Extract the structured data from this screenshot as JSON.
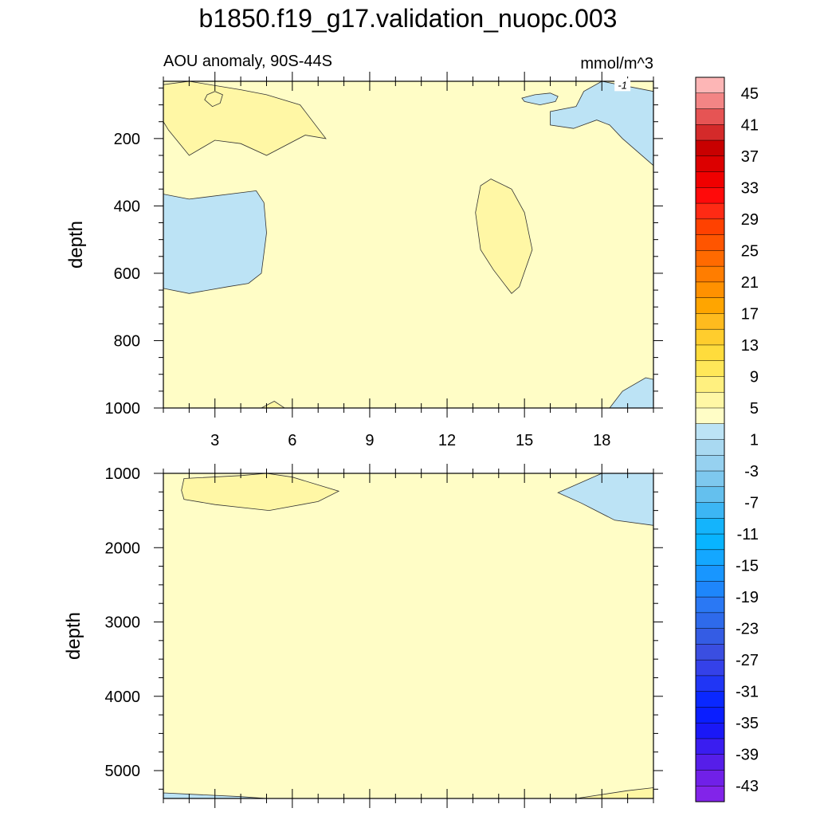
{
  "title": "b1850.f19_g17.validation_nuopc.003",
  "subtitle_left": "AOU anomaly, 90S-44S",
  "subtitle_right": "mmol/m^3",
  "contour_label": "-1",
  "colors": {
    "background_field": "#fffdc6",
    "positive_1_5": "#fff7a5",
    "negative_1_3": "#bce3f5"
  },
  "chart_data": [
    {
      "type": "contour",
      "panel": "upper",
      "ylabel": "depth",
      "xlim": [
        1,
        20
      ],
      "ylim": [
        1000,
        30
      ],
      "y_reversed": true,
      "xticks": [
        3,
        6,
        9,
        12,
        15,
        18
      ],
      "yticks": [
        200,
        400,
        600,
        800,
        1000
      ],
      "regions": [
        {
          "level": "1 to 5",
          "color": "#fff7a5",
          "points": [
            [
              1,
              40
            ],
            [
              2,
              30
            ],
            [
              4,
              55
            ],
            [
              5,
              70
            ],
            [
              6.3,
              100
            ],
            [
              7.3,
              200
            ],
            [
              6.5,
              190
            ],
            [
              5,
              250
            ],
            [
              4,
              215
            ],
            [
              3,
              205
            ],
            [
              2,
              250
            ],
            [
              1.2,
              175
            ],
            [
              1,
              150
            ]
          ]
        },
        {
          "level": "1 to 5",
          "color": "#fff7a5",
          "points": [
            [
              2.7,
              70
            ],
            [
              3,
              60
            ],
            [
              3.3,
              70
            ],
            [
              3.2,
              95
            ],
            [
              2.9,
              105
            ],
            [
              2.6,
              85
            ]
          ]
        },
        {
          "level": "1 to 5",
          "color": "#fff7a5",
          "points": [
            [
              13.7,
              320
            ],
            [
              14.5,
              350
            ],
            [
              15,
              420
            ],
            [
              15.3,
              530
            ],
            [
              14.8,
              640
            ],
            [
              14.5,
              660
            ],
            [
              13.8,
              590
            ],
            [
              13.3,
              530
            ],
            [
              13.1,
              420
            ],
            [
              13.3,
              340
            ]
          ]
        },
        {
          "level": "-3 to -1",
          "color": "#bce3f5",
          "points": [
            [
              1,
              365
            ],
            [
              2,
              380
            ],
            [
              4.6,
              355
            ],
            [
              4.9,
              390
            ],
            [
              5,
              480
            ],
            [
              4.8,
              600
            ],
            [
              4.3,
              630
            ],
            [
              3.5,
              640
            ],
            [
              2,
              660
            ],
            [
              1,
              645
            ]
          ]
        },
        {
          "level": "-3 to -1",
          "color": "#bce3f5",
          "points": [
            [
              15.4,
              70
            ],
            [
              16,
              65
            ],
            [
              16.3,
              75
            ],
            [
              16.2,
              90
            ],
            [
              15.6,
              100
            ],
            [
              15,
              90
            ],
            [
              14.9,
              80
            ]
          ]
        },
        {
          "level": "-3 to -1",
          "color": "#bce3f5",
          "points": [
            [
              18,
              30
            ],
            [
              20,
              60
            ],
            [
              20,
              280
            ],
            [
              18.8,
              200
            ],
            [
              18.3,
              160
            ],
            [
              17.8,
              145
            ],
            [
              16.9,
              170
            ],
            [
              16,
              160
            ],
            [
              16,
              120
            ],
            [
              17,
              105
            ],
            [
              17.3,
              60
            ]
          ]
        },
        {
          "level": "-3 to -1",
          "color": "#bce3f5",
          "points": [
            [
              19.7,
              910
            ],
            [
              20,
              915
            ],
            [
              20,
              1000
            ],
            [
              18.3,
              1000
            ],
            [
              18.8,
              950
            ]
          ]
        },
        {
          "level": "1 to 5",
          "color": "#fff7a5",
          "points": [
            [
              4.8,
              1000
            ],
            [
              5.3,
              980
            ],
            [
              5.7,
              1000
            ]
          ]
        }
      ]
    },
    {
      "type": "contour",
      "panel": "lower",
      "ylabel": "depth",
      "xlim": [
        1,
        20
      ],
      "ylim": [
        5375,
        1000
      ],
      "y_reversed": true,
      "xticks": [
        3,
        6,
        9,
        12,
        15,
        18
      ],
      "yticks": [
        1000,
        2000,
        3000,
        4000,
        5000
      ],
      "regions": [
        {
          "level": "1 to 5",
          "color": "#fff7a5",
          "points": [
            [
              1.8,
              1070
            ],
            [
              4,
              1030
            ],
            [
              5,
              1000
            ],
            [
              6,
              1050
            ],
            [
              7.8,
              1240
            ],
            [
              7,
              1380
            ],
            [
              5.1,
              1500
            ],
            [
              3,
              1420
            ],
            [
              1.8,
              1350
            ],
            [
              1.7,
              1230
            ]
          ]
        },
        {
          "level": "-3 to -1",
          "color": "#bce3f5",
          "points": [
            [
              18,
              1000
            ],
            [
              20,
              1000
            ],
            [
              20,
              1700
            ],
            [
              18.5,
              1630
            ],
            [
              17.2,
              1400
            ],
            [
              16.3,
              1260
            ]
          ]
        },
        {
          "level": "-3 to -1",
          "color": "#bce3f5",
          "points": [
            [
              1,
              5300
            ],
            [
              4,
              5350
            ],
            [
              5,
              5375
            ],
            [
              1,
              5375
            ]
          ]
        },
        {
          "level": "1 to 5",
          "color": "#fff7a5",
          "points": [
            [
              17,
              5375
            ],
            [
              19,
              5270
            ],
            [
              20,
              5230
            ],
            [
              20,
              5375
            ]
          ]
        }
      ]
    }
  ],
  "colorbar": {
    "labels": [
      "45",
      "41",
      "37",
      "33",
      "29",
      "25",
      "21",
      "17",
      "13",
      "9",
      "5",
      "1",
      "-3",
      "-7",
      "-11",
      "-15",
      "-19",
      "-23",
      "-27",
      "-31",
      "-35",
      "-39",
      "-43"
    ],
    "colors": [
      "#fdb6b6",
      "#f38585",
      "#e65454",
      "#d42a2a",
      "#c80000",
      "#dc0000",
      "#f00000",
      "#ff0a0a",
      "#ff2a14",
      "#ff4100",
      "#ff5500",
      "#ff6a00",
      "#ff7d00",
      "#ff9100",
      "#ffa500",
      "#ffbb1e",
      "#ffcd2d",
      "#ffdc3c",
      "#ffe759",
      "#fff07f",
      "#fff7a5",
      "#fffdc6",
      "#bce3f5",
      "#a9d9f1",
      "#96d1f0",
      "#7ec8ee",
      "#64c0ee",
      "#3cb6f4",
      "#14b4fc",
      "#08b4ff",
      "#14a7ff",
      "#1896ff",
      "#1e86fb",
      "#2a78f4",
      "#2e6aeb",
      "#345ce4",
      "#3a4ee1",
      "#3441e9",
      "#2036f5",
      "#0a28ff",
      "#0a1eff",
      "#1a18f6",
      "#3a1df0",
      "#561ee9",
      "#7020e8",
      "#8224e9"
    ]
  }
}
